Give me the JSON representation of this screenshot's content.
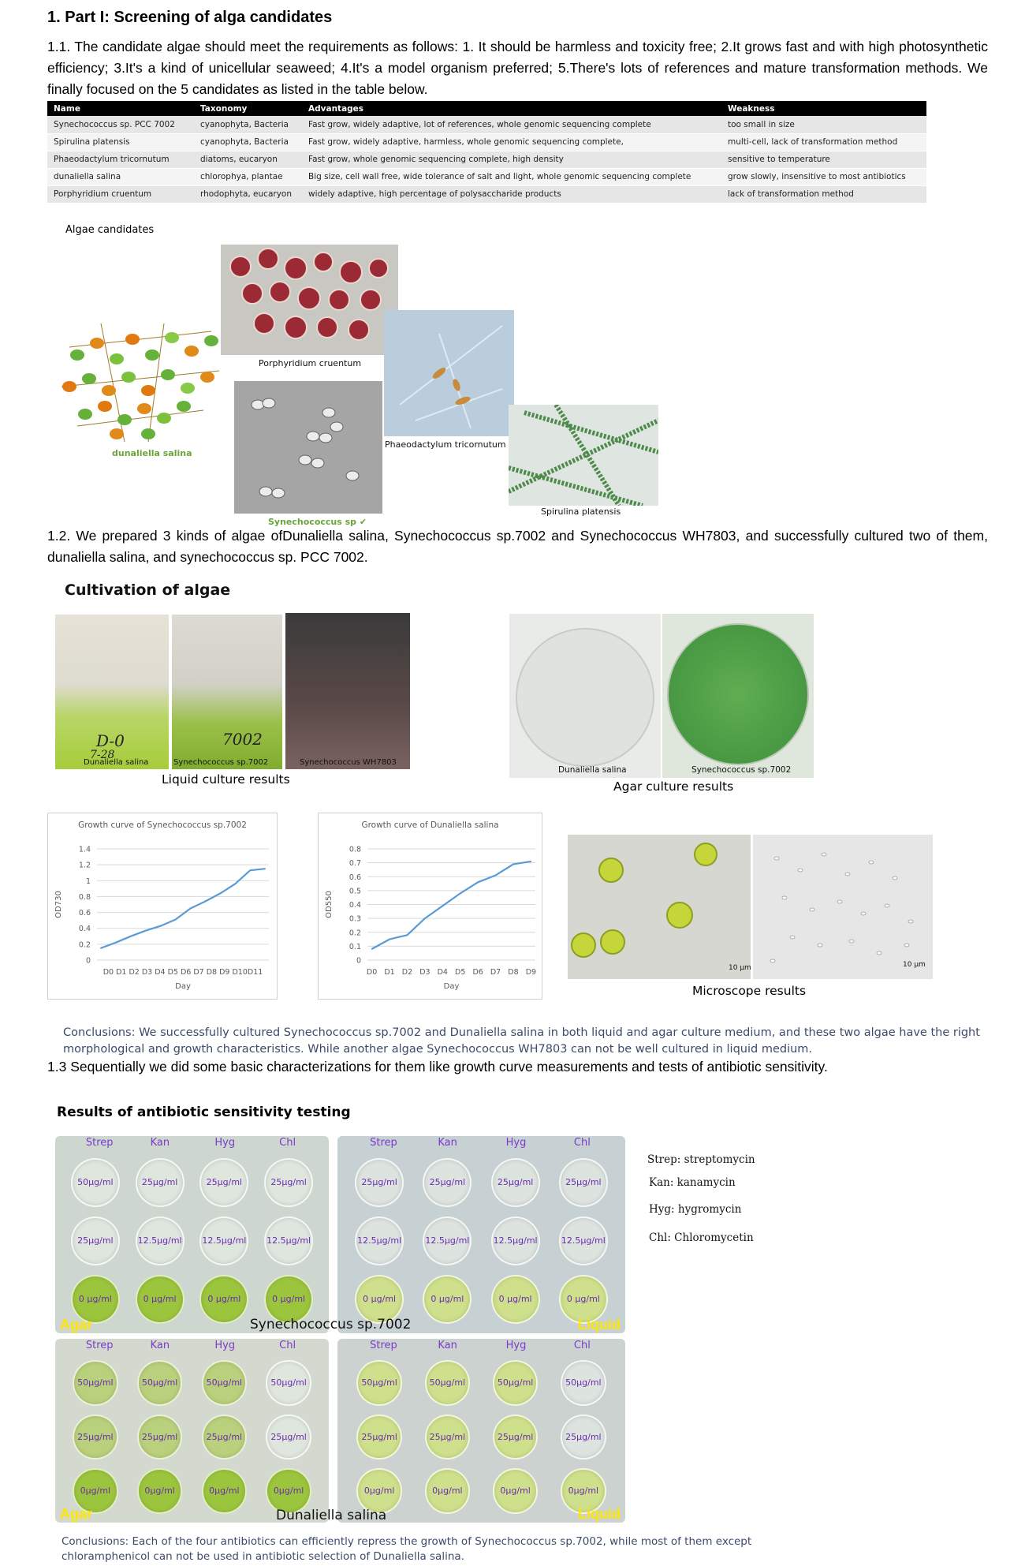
{
  "part1": {
    "heading": "1. Part I: Screening of alga candidates",
    "p11": "1.1. The candidate algae should meet the requirements as follows: 1. It should be harmless and toxicity free; 2.It grows fast and with high photosynthetic efficiency; 3.It's a kind of unicellular seaweed; 4.It's a model organism preferred; 5.There's lots of references and mature transformation methods. We finally focused on the 5 candidates as listed in the table below.",
    "table": {
      "headers": [
        "Name",
        "Taxonomy",
        "Advantages",
        "Weakness"
      ],
      "rows": [
        [
          "Synechococcus sp. PCC 7002",
          "cyanophyta, Bacteria",
          "Fast grow, widely adaptive,  lot of references, whole genomic sequencing complete",
          "too small in size"
        ],
        [
          "Spirulina platensis",
          "cyanophyta, Bacteria",
          "Fast grow, widely adaptive, harmless, whole genomic sequencing complete,",
          "multi-cell,  lack of transformation method"
        ],
        [
          "Phaeodactylum tricornutum",
          "diatoms, eucaryon",
          "Fast grow, whole genomic sequencing complete, high density",
          "sensitive to  temperature"
        ],
        [
          "dunaliella salina",
          "chlorophya, plantae",
          "Big size, cell wall free, wide tolerance of salt and light,  whole genomic sequencing complete",
          "grow slowly,  insensitive to most antibiotics"
        ],
        [
          "Porphyridium cruentum",
          "rhodophyta, eucaryon",
          "widely adaptive, high percentage of polysaccharide products",
          "lack of transformation method"
        ]
      ]
    },
    "candidates_label": "Algae candidates",
    "captions": {
      "porphyridium": "Porphyridium cruentum",
      "phaeodactylum": "Phaeodactylum tricornutum",
      "spirulina": "Spirulina platensis",
      "dunaliella": "dunaliella salina",
      "synechococcus": "Synechococcus sp",
      "check": "✔",
      "scale10": "10 μm"
    },
    "p12": "1.2. We prepared 3 kinds of algae ofDunaliella salina, Synechococcus sp.7002 and Synechococcus WH7803, and successfully cultured two of them, dunaliella salina, and synechococcus sp. PCC 7002."
  },
  "cultivation": {
    "title": "Cultivation of algae",
    "flask_labels": [
      "Dunaliella salina",
      "Synechococcus sp.7002",
      "Synechococcus WH7803"
    ],
    "flask_handwriting": [
      "D-0",
      "7-28",
      "7002"
    ],
    "liquid_caption": "Liquid culture results",
    "agar_labels": [
      "Dunaliella salina",
      "Synechococcus sp.7002"
    ],
    "agar_caption": "Agar culture results",
    "micro_caption": "Microscope results",
    "micro_scale": [
      "10 μm",
      "10 μm"
    ],
    "conclusion": "Conclusions: We successfully cultured Synechococcus sp.7002 and Dunaliella salina in both liquid and agar culture medium, and these two algae have the right morphological and growth characteristics. While another algae Synechococcus WH7803 can not be well cultured in liquid medium."
  },
  "chart_data": [
    {
      "type": "line",
      "title": "Growth curve of Synechococcus sp.7002",
      "xlabel": "Day",
      "ylabel": "OD730",
      "categories": [
        "D0",
        "D1",
        "D2",
        "D3",
        "D4",
        "D5",
        "D6",
        "D7",
        "D8",
        "D9",
        "D10",
        "D11"
      ],
      "tick_text": "D0 D1 D2 D3 D4 D5 D6 D7 D8 D9 D10D11",
      "values": [
        0.15,
        0.22,
        0.3,
        0.37,
        0.43,
        0.51,
        0.65,
        0.74,
        0.84,
        0.96,
        1.13,
        1.15
      ],
      "ylim": [
        0,
        1.4
      ],
      "yticks": [
        "0",
        "0.2",
        "0.4",
        "0.6",
        "0.8",
        "1",
        "1.2",
        "1.4"
      ],
      "color": "#5b9bd5",
      "grid": true
    },
    {
      "type": "line",
      "title": "Growth curve of Dunaliella salina",
      "xlabel": "Day",
      "ylabel": "OD550",
      "categories": [
        "D0",
        "D1",
        "D2",
        "D3",
        "D4",
        "D5",
        "D6",
        "D7",
        "D8",
        "D9"
      ],
      "values": [
        0.08,
        0.15,
        0.18,
        0.3,
        0.39,
        0.48,
        0.56,
        0.61,
        0.69,
        0.71
      ],
      "ylim": [
        0,
        0.8
      ],
      "yticks": [
        "0",
        "0.1",
        "0.2",
        "0.3",
        "0.4",
        "0.5",
        "0.6",
        "0.7",
        "0.8"
      ],
      "color": "#5b9bd5",
      "grid": true
    }
  ],
  "p13": "1.3 Sequentially we did some basic characterizations for them like growth curve measurements and tests of antibiotic sensitivity.",
  "antibiotic": {
    "title": "Results of antibiotic sensitivity testing",
    "legend": [
      "Strep: streptomycin",
      "Kan: kanamycin",
      "Hyg: hygromycin",
      "Chl: Chloromycetin"
    ],
    "heads": [
      "Strep",
      "Kan",
      "Hyg",
      "Chl"
    ],
    "plate_top_left_conc": [
      [
        "50μg/ml",
        "25μg/ml",
        "25μg/ml",
        "25μg/ml"
      ],
      [
        "25μg/ml",
        "12.5μg/ml",
        "12.5μg/ml",
        "12.5μg/ml"
      ],
      [
        "0 μg/ml",
        "0 μg/ml",
        "0 μg/ml",
        "0 μg/ml"
      ]
    ],
    "plate_top_right_conc": [
      [
        "25μg/ml",
        "25μg/ml",
        "25μg/ml",
        "25μg/ml"
      ],
      [
        "12.5μg/ml",
        "12.5μg/ml",
        "12.5μg/ml",
        "12.5μg/ml"
      ],
      [
        "0 μg/ml",
        "0 μg/ml",
        "0 μg/ml",
        "0 μg/ml"
      ]
    ],
    "plate_bot_left_conc": [
      [
        "50μg/ml",
        "50μg/ml",
        "50μg/ml",
        "50μg/ml"
      ],
      [
        "25μg/ml",
        "25μg/ml",
        "25μg/ml",
        "25μg/ml"
      ],
      [
        "0μg/ml",
        "0μg/ml",
        "0μg/ml",
        "0μg/ml"
      ]
    ],
    "plate_bot_right_conc": [
      [
        "50μg/ml",
        "50μg/ml",
        "50μg/ml",
        "50μg/ml"
      ],
      [
        "25μg/ml",
        "25μg/ml",
        "25μg/ml",
        "25μg/ml"
      ],
      [
        "0μg/ml",
        "0μg/ml",
        "0μg/ml",
        "0μg/ml"
      ]
    ],
    "agar": "Agar",
    "liquid": "Liquid",
    "caption_syn": "Synechococcus sp.7002",
    "caption_dun": "Dunaliella salina",
    "conclusion": "Conclusions: Each of the four antibiotics can efficiently repress the growth of Synechococcus sp.7002, while most of them except chloramphenicol can not be used in antibiotic selection of Dunaliella salina."
  },
  "colors": {
    "line": "#5b9bd5",
    "conclusion_text": "#3c4a6b",
    "label_purple": "#6a2bb0",
    "corner_yellow": "#ffe600"
  }
}
